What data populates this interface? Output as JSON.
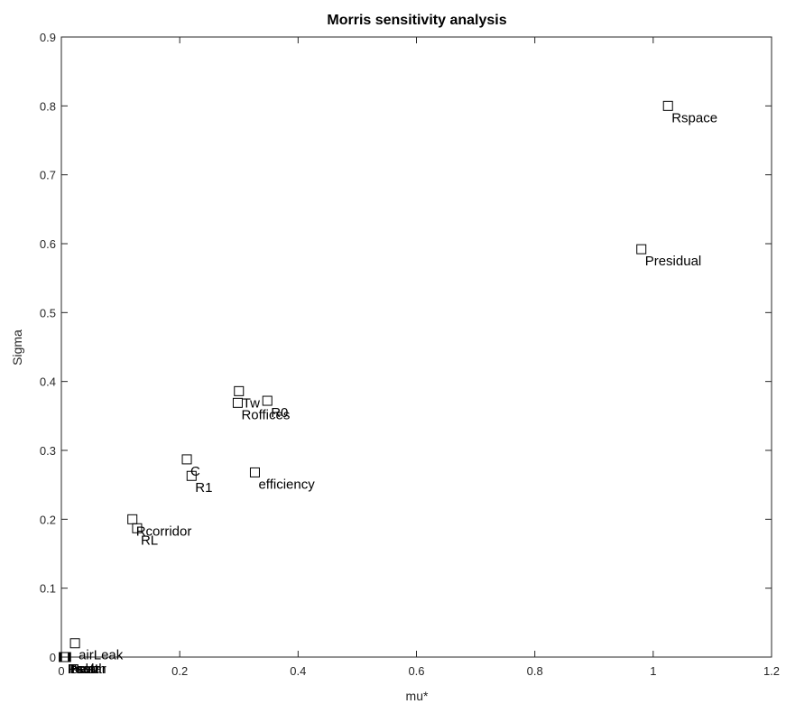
{
  "chart_data": {
    "type": "scatter",
    "title": "Morris sensitivity analysis",
    "xlabel": "mu*",
    "ylabel": "Sigma",
    "xlim": [
      0,
      1.2
    ],
    "ylim": [
      0,
      0.9
    ],
    "xticks": [
      "0",
      "0.2",
      "0.4",
      "0.6",
      "0.8",
      "1",
      "1.2"
    ],
    "yticks": [
      "0",
      "0.1",
      "0.2",
      "0.3",
      "0.4",
      "0.5",
      "0.6",
      "0.7",
      "0.8",
      "0.9"
    ],
    "grid": false,
    "marker": "square",
    "points": [
      {
        "label": "Rspace",
        "x": 1.025,
        "y": 0.8
      },
      {
        "label": "Presidual",
        "x": 0.98,
        "y": 0.592
      },
      {
        "label": "Tw",
        "x": 0.3,
        "y": 0.386
      },
      {
        "label": "Roffices",
        "x": 0.298,
        "y": 0.369
      },
      {
        "label": "R0",
        "x": 0.348,
        "y": 0.372
      },
      {
        "label": "efficiency",
        "x": 0.327,
        "y": 0.268
      },
      {
        "label": "C",
        "x": 0.212,
        "y": 0.287
      },
      {
        "label": "R1",
        "x": 0.22,
        "y": 0.263
      },
      {
        "label": "Rcorridor",
        "x": 0.12,
        "y": 0.2
      },
      {
        "label": "RL",
        "x": 0.128,
        "y": 0.187
      },
      {
        "label": "airLeak",
        "x": 0.023,
        "y": 0.02
      },
      {
        "label": "Isolar",
        "x": 0.004,
        "y": 0.0
      },
      {
        "label": "Psolar",
        "x": 0.005,
        "y": 0.0
      },
      {
        "label": "Tearth",
        "x": 0.006,
        "y": 0.0
      },
      {
        "label": "Tset",
        "x": 0.007,
        "y": 0.0
      },
      {
        "label": "Heat",
        "x": 0.008,
        "y": 0.0
      }
    ]
  }
}
